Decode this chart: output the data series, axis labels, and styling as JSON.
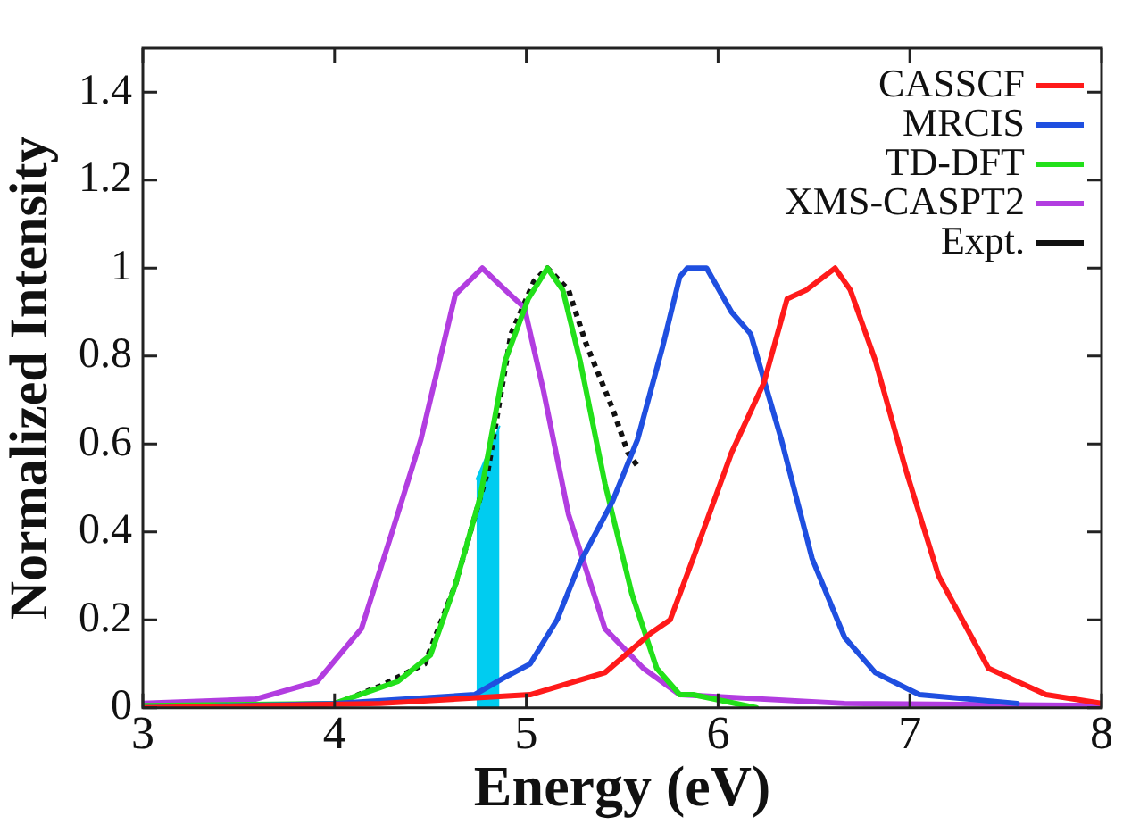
{
  "chart_data": {
    "type": "line",
    "xlabel": "Energy (eV)",
    "ylabel": "Normalized Intensity",
    "xlim": [
      3,
      8
    ],
    "xticks": [
      3,
      4,
      5,
      6,
      7,
      8
    ],
    "ylim": [
      0,
      1.5
    ],
    "yticks": [
      0,
      0.2,
      0.4,
      0.6,
      0.8,
      1,
      1.2,
      1.4
    ],
    "legend": "top right",
    "marker": "none",
    "series": [
      {
        "name": "CASSCF",
        "color": "#ff1a1a",
        "x": [
          3.0,
          4.24,
          5.02,
          5.41,
          5.65,
          5.75,
          5.87,
          6.07,
          6.24,
          6.36,
          6.46,
          6.61,
          6.69,
          6.82,
          6.98,
          7.15,
          7.41,
          7.71,
          8.0
        ],
        "values": [
          0.0,
          0.01,
          0.03,
          0.08,
          0.17,
          0.2,
          0.34,
          0.58,
          0.74,
          0.93,
          0.95,
          1.0,
          0.95,
          0.79,
          0.54,
          0.3,
          0.09,
          0.03,
          0.01
        ]
      },
      {
        "name": "MRCIS",
        "color": "#1f4fe0",
        "x": [
          3.0,
          4.0,
          4.73,
          4.89,
          5.02,
          5.16,
          5.28,
          5.45,
          5.58,
          5.71,
          5.8,
          5.84,
          5.94,
          6.07,
          6.17,
          6.33,
          6.49,
          6.66,
          6.82,
          7.05,
          7.56
        ],
        "values": [
          0.0,
          0.01,
          0.03,
          0.07,
          0.1,
          0.2,
          0.33,
          0.47,
          0.61,
          0.82,
          0.98,
          1.0,
          1.0,
          0.9,
          0.85,
          0.61,
          0.34,
          0.16,
          0.08,
          0.03,
          0.01
        ]
      },
      {
        "name": "TD-DFT",
        "color": "#22e01a",
        "x": [
          3.0,
          4.0,
          4.33,
          4.5,
          4.63,
          4.76,
          4.89,
          5.01,
          5.11,
          5.19,
          5.28,
          5.41,
          5.55,
          5.68,
          5.8,
          5.87,
          6.2
        ],
        "values": [
          0.005,
          0.01,
          0.06,
          0.12,
          0.28,
          0.48,
          0.79,
          0.93,
          1.0,
          0.95,
          0.79,
          0.51,
          0.26,
          0.09,
          0.03,
          0.03,
          0.0
        ]
      },
      {
        "name": "XMS-CASPT2",
        "color": "#b23de0",
        "x": [
          3.0,
          3.59,
          3.91,
          4.14,
          4.3,
          4.45,
          4.63,
          4.77,
          4.89,
          4.99,
          5.09,
          5.22,
          5.41,
          5.61,
          5.8,
          6.66,
          8.0
        ],
        "values": [
          0.01,
          0.02,
          0.06,
          0.18,
          0.4,
          0.61,
          0.94,
          1.0,
          0.95,
          0.91,
          0.72,
          0.44,
          0.18,
          0.09,
          0.03,
          0.01,
          0.005
        ]
      },
      {
        "name": "Expt.",
        "color": "#111111",
        "line_style": "dotted",
        "x": [
          4.01,
          4.24,
          4.47,
          4.63,
          4.8,
          4.92,
          5.04,
          5.11,
          5.22,
          5.31,
          5.45,
          5.53,
          5.58
        ],
        "values": [
          0.01,
          0.05,
          0.1,
          0.28,
          0.54,
          0.85,
          0.97,
          1.0,
          0.95,
          0.83,
          0.68,
          0.58,
          0.55
        ]
      },
      {
        "type": "area",
        "color": "#00ccf0",
        "x": [
          4.74,
          4.86
        ],
        "values": [
          0.52,
          0.64
        ]
      }
    ]
  }
}
